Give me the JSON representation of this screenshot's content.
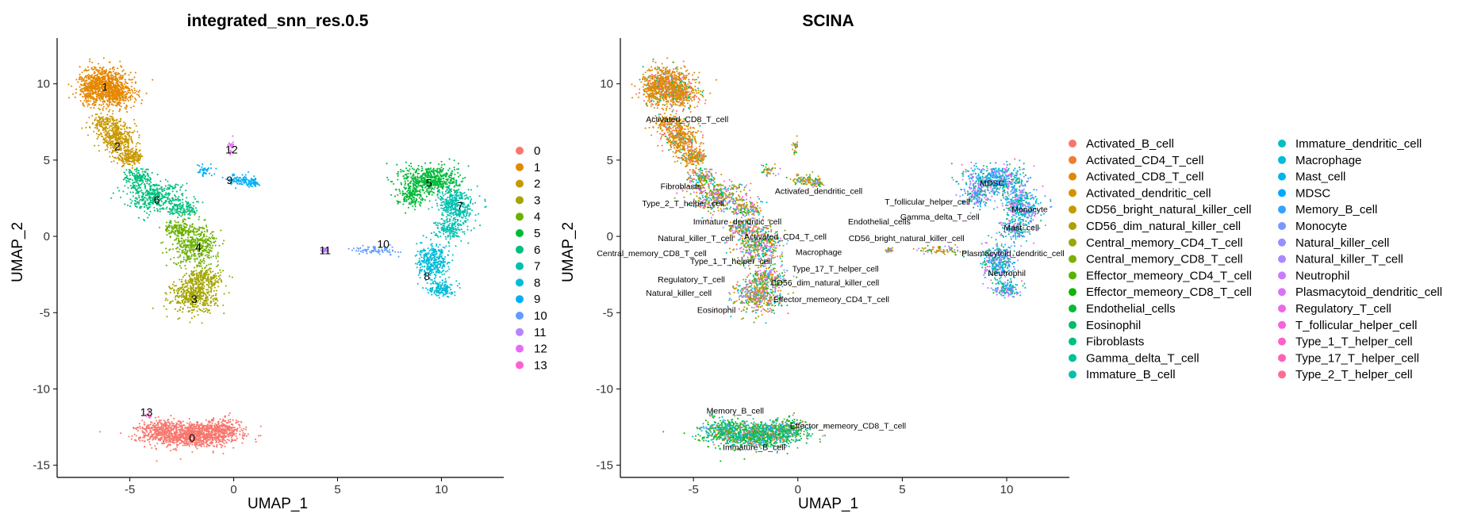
{
  "palette": {
    "0": "#F8766D",
    "1": "#E58700",
    "2": "#C99800",
    "3": "#A3A500",
    "4": "#6BB100",
    "5": "#00BA38",
    "6": "#00BF7D",
    "7": "#00C0AF",
    "8": "#00BCD8",
    "9": "#00B0F6",
    "10": "#619CFF",
    "11": "#B983FF",
    "12": "#E76BF3",
    "13": "#FD61D1"
  },
  "chart_data": [
    {
      "type": "scatter",
      "title": "integrated_snn_res.0.5",
      "xlabel": "UMAP_1",
      "ylabel": "UMAP_2",
      "xlim": [
        -8.5,
        13
      ],
      "ylim": [
        -15.8,
        13
      ],
      "xticks": [
        -5,
        0,
        5,
        10
      ],
      "yticks": [
        -15,
        -10,
        -5,
        0,
        5,
        10
      ],
      "grid": false,
      "legend_position": "right",
      "legend_title": "",
      "legend": [
        "0",
        "1",
        "2",
        "3",
        "4",
        "5",
        "6",
        "7",
        "8",
        "9",
        "10",
        "11",
        "12",
        "13"
      ],
      "clusters": [
        {
          "name": "0",
          "x": -2.0,
          "y": -13.2,
          "label": "0"
        },
        {
          "name": "1",
          "x": -6.2,
          "y": 9.8,
          "label": "1"
        },
        {
          "name": "2",
          "x": -5.6,
          "y": 5.9,
          "label": "2"
        },
        {
          "name": "3",
          "x": -1.9,
          "y": -4.1,
          "label": "3"
        },
        {
          "name": "4",
          "x": -1.7,
          "y": -0.7,
          "label": "4"
        },
        {
          "name": "5",
          "x": 9.4,
          "y": 3.5,
          "label": "5"
        },
        {
          "name": "6",
          "x": -3.7,
          "y": 2.4,
          "label": "6"
        },
        {
          "name": "7",
          "x": 10.9,
          "y": 2.0,
          "label": "7"
        },
        {
          "name": "8",
          "x": 9.3,
          "y": -2.6,
          "label": "8"
        },
        {
          "name": "9",
          "x": -0.2,
          "y": 3.7,
          "label": "9"
        },
        {
          "name": "10",
          "x": 7.2,
          "y": -0.5,
          "label": "10"
        },
        {
          "name": "11",
          "x": 4.4,
          "y": -0.9,
          "label": "11"
        },
        {
          "name": "12",
          "x": -0.1,
          "y": 5.7,
          "label": "12"
        },
        {
          "name": "13",
          "x": -4.2,
          "y": -11.5,
          "label": "13"
        }
      ]
    },
    {
      "type": "scatter",
      "title": "SCINA",
      "xlabel": "UMAP_1",
      "ylabel": "UMAP_2",
      "xlim": [
        -8.5,
        13
      ],
      "ylim": [
        -15.8,
        13
      ],
      "xticks": [
        -5,
        0,
        5,
        10
      ],
      "yticks": [
        -15,
        -10,
        -5,
        0,
        5,
        10
      ],
      "grid": false,
      "legend_position": "right",
      "legend_columns": 2,
      "legend": [
        {
          "label": "Activated_B_cell",
          "color": "#F8766D"
        },
        {
          "label": "Activated_CD4_T_cell",
          "color": "#EE7D30"
        },
        {
          "label": "Activated_CD8_T_cell",
          "color": "#E38900"
        },
        {
          "label": "Activated_dendritic_cell",
          "color": "#D39200"
        },
        {
          "label": "CD56_bright_natural_killer_cell",
          "color": "#C49A00"
        },
        {
          "label": "CD56_dim_natural_killer_cell",
          "color": "#B09F00"
        },
        {
          "label": "Central_memory_CD4_T_cell",
          "color": "#9AA800"
        },
        {
          "label": "Central_memory_CD8_T_cell",
          "color": "#7DAE00"
        },
        {
          "label": "Effector_memeory_CD4_T_cell",
          "color": "#56B300"
        },
        {
          "label": "Effector_memeory_CD8_T_cell",
          "color": "#0CB702"
        },
        {
          "label": "Endothelial_cells",
          "color": "#00BA38"
        },
        {
          "label": "Eosinophil",
          "color": "#00BE67"
        },
        {
          "label": "Fibroblasts",
          "color": "#00BF7D"
        },
        {
          "label": "Gamma_delta_T_cell",
          "color": "#00C097"
        },
        {
          "label": "Immature_B_cell",
          "color": "#00C1AA"
        },
        {
          "label": "Immature_dendritic_cell",
          "color": "#00BFC4"
        },
        {
          "label": "Macrophage",
          "color": "#00BBDA"
        },
        {
          "label": "Mast_cell",
          "color": "#00B4EF"
        },
        {
          "label": "MDSC",
          "color": "#00A9FF"
        },
        {
          "label": "Memory_B_cell",
          "color": "#35A2FF"
        },
        {
          "label": "Monocyte",
          "color": "#7997FF"
        },
        {
          "label": "Natural_killer_cell",
          "color": "#9590FF"
        },
        {
          "label": "Natural_killer_T_cell",
          "color": "#AC88FF"
        },
        {
          "label": "Neutrophil",
          "color": "#C77CFF"
        },
        {
          "label": "Plasmacytoid_dendritic_cell",
          "color": "#DC71FA"
        },
        {
          "label": "Regulatory_T_cell",
          "color": "#EE67E8"
        },
        {
          "label": "T_follicular_helper_cell",
          "color": "#F962DD"
        },
        {
          "label": "Type_1_T_helper_cell",
          "color": "#FF61C9"
        },
        {
          "label": "Type_17_T_helper_cell",
          "color": "#FF62B6"
        },
        {
          "label": "Type_2_T_helper_cell",
          "color": "#FF6C91"
        }
      ],
      "annotations": [
        {
          "text": "Activated_CD8_T_cell",
          "x": -5.3,
          "y": 7.7
        },
        {
          "text": "Fibroblasts",
          "x": -5.6,
          "y": 3.3
        },
        {
          "text": "Activated_dendritic_cell",
          "x": 1.0,
          "y": 3.0
        },
        {
          "text": "Type_2_T_helper_cell",
          "x": -5.5,
          "y": 2.2
        },
        {
          "text": "Immature_dendritic_cell",
          "x": -2.9,
          "y": 1.0
        },
        {
          "text": "Natural_killer_T_cell",
          "x": -4.9,
          "y": -0.1
        },
        {
          "text": "Activated_CD4_T_cell",
          "x": -0.6,
          "y": 0.0
        },
        {
          "text": "Central_memory_CD8_T_cell",
          "x": -7.0,
          "y": -1.1
        },
        {
          "text": "Macrophage",
          "x": 1.0,
          "y": -1.0
        },
        {
          "text": "Type_1_T_helper_cell",
          "x": -3.2,
          "y": -1.6
        },
        {
          "text": "Type_17_T_helper_cell",
          "x": 1.8,
          "y": -2.1
        },
        {
          "text": "Regulatory_T_cell",
          "x": -5.1,
          "y": -2.8
        },
        {
          "text": "CD56_dim_natural_killer_cell",
          "x": 1.3,
          "y": -3.0
        },
        {
          "text": "Natural_killer_cell",
          "x": -5.7,
          "y": -3.7
        },
        {
          "text": "Effector_memeory_CD4_T_cell",
          "x": 1.6,
          "y": -4.1
        },
        {
          "text": "Eosinophil",
          "x": -3.9,
          "y": -4.8
        },
        {
          "text": "T_follicular_helper_cell",
          "x": 6.2,
          "y": 2.3
        },
        {
          "text": "MDSC",
          "x": 9.3,
          "y": 3.5
        },
        {
          "text": "Endothelial_cells",
          "x": 3.9,
          "y": 1.0
        },
        {
          "text": "Gamma_delta_T_cell",
          "x": 6.8,
          "y": 1.3
        },
        {
          "text": "Monocyte",
          "x": 11.1,
          "y": 1.8
        },
        {
          "text": "Mast_cell",
          "x": 10.7,
          "y": 0.6
        },
        {
          "text": "CD56_bright_natural_killer_cell",
          "x": 5.2,
          "y": -0.1
        },
        {
          "text": "Plasmacytoid_dendritic_cell",
          "x": 10.3,
          "y": -1.1
        },
        {
          "text": "Neutrophil",
          "x": 10.0,
          "y": -2.4
        },
        {
          "text": "Memory_B_cell",
          "x": -3.0,
          "y": -11.4
        },
        {
          "text": "Effector_memeory_CD8_T_cell",
          "x": 2.4,
          "y": -12.4
        },
        {
          "text": "Immature_B_cell",
          "x": -2.1,
          "y": -13.8
        }
      ]
    }
  ]
}
